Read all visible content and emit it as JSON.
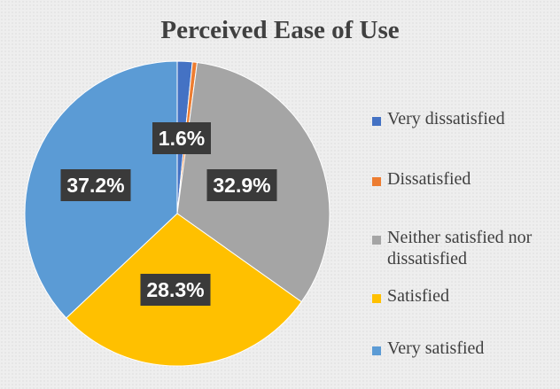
{
  "chart_data": {
    "type": "pie",
    "title": "Perceived Ease of Use",
    "categories": [
      "Very dissatisfied",
      "Dissatisfied",
      "Neither satisfied nor dissatisfied",
      "Satisfied",
      "Very satisfied"
    ],
    "values": [
      1.6,
      0.5,
      32.9,
      28.3,
      37.2
    ],
    "data_labels": [
      "1.6%",
      "",
      "32.9%",
      "28.3%",
      "37.2%"
    ],
    "colors": [
      "#4472C4",
      "#ED7D31",
      "#A5A5A5",
      "#FFC000",
      "#5B9BD5"
    ],
    "legend_position": "right",
    "label_style": "dark boxed percentage labels"
  }
}
